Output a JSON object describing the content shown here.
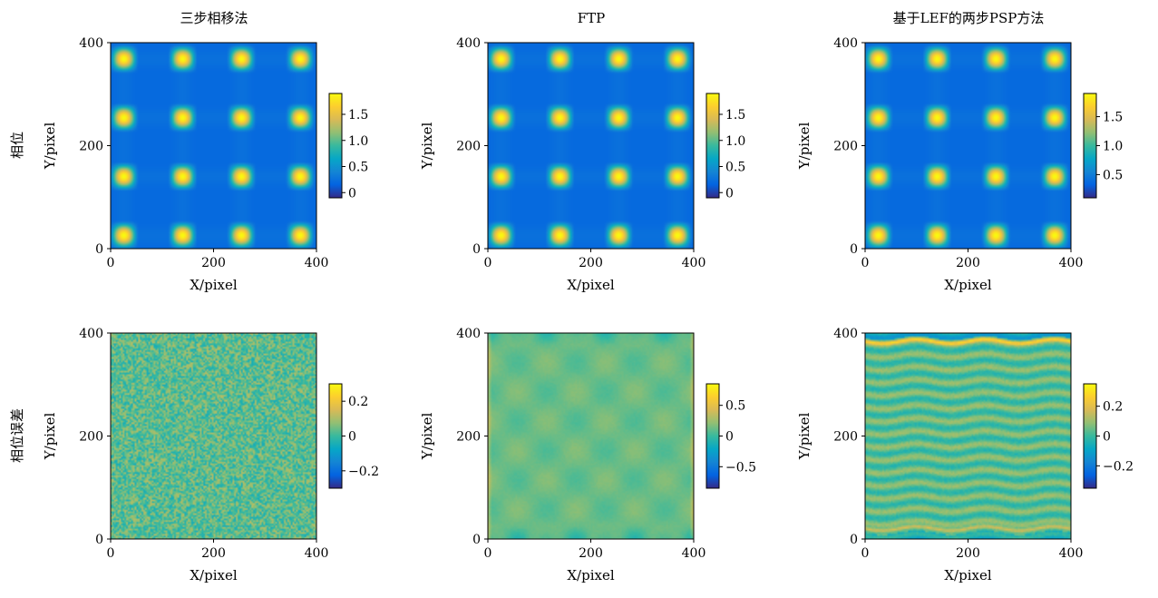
{
  "figure": {
    "columns": [
      "三步相移法",
      "FTP",
      "基于LEF的两步PSP方法"
    ],
    "rows": [
      "相位",
      "相位误差"
    ]
  },
  "chart_data": [
    {
      "type": "heatmap",
      "title": "三步相移法",
      "row_label": "相位",
      "xlabel": "X/pixel",
      "ylabel": "Y/pixel",
      "xlim": [
        0,
        400
      ],
      "ylim": [
        0,
        400
      ],
      "xticks": [
        "0",
        "200",
        "400"
      ],
      "yticks": [
        "0",
        "200",
        "400"
      ],
      "pattern": "spots",
      "cells": 7,
      "colorbar": {
        "min": -0.1,
        "max": 1.9,
        "ticks": [
          0,
          0.5,
          1.0,
          1.5
        ],
        "tick_labels": [
          "0",
          "0.5",
          "1.0",
          "1.5"
        ]
      }
    },
    {
      "type": "heatmap",
      "title": "FTP",
      "row_label": "相位",
      "xlabel": "X/pixel",
      "ylabel": "Y/pixel",
      "xlim": [
        0,
        400
      ],
      "ylim": [
        0,
        400
      ],
      "xticks": [
        "0",
        "200",
        "400"
      ],
      "yticks": [
        "0",
        "200",
        "400"
      ],
      "pattern": "spots",
      "cells": 7,
      "colorbar": {
        "min": -0.1,
        "max": 1.9,
        "ticks": [
          0,
          0.5,
          1.0,
          1.5
        ],
        "tick_labels": [
          "0",
          "0.5",
          "1.0",
          "1.5"
        ]
      }
    },
    {
      "type": "heatmap",
      "title": "基于LEF的两步PSP方法",
      "row_label": "相位",
      "xlabel": "X/pixel",
      "ylabel": "Y/pixel",
      "xlim": [
        0,
        400
      ],
      "ylim": [
        0,
        400
      ],
      "xticks": [
        "0",
        "200",
        "400"
      ],
      "yticks": [
        "0",
        "200",
        "400"
      ],
      "pattern": "spots",
      "cells": 7,
      "colorbar": {
        "min": 0.1,
        "max": 1.9,
        "ticks": [
          0.5,
          1.0,
          1.5
        ],
        "tick_labels": [
          "0.5",
          "1.0",
          "1.5"
        ]
      }
    },
    {
      "type": "heatmap",
      "title": "",
      "row_label": "相位误差",
      "xlabel": "X/pixel",
      "ylabel": "Y/pixel",
      "xlim": [
        0,
        400
      ],
      "ylim": [
        0,
        400
      ],
      "xticks": [
        "0",
        "200",
        "400"
      ],
      "yticks": [
        "0",
        "200",
        "400"
      ],
      "pattern": "noise",
      "colorbar": {
        "min": -0.3,
        "max": 0.3,
        "ticks": [
          -0.2,
          0,
          0.2
        ],
        "tick_labels": [
          "−0.2",
          "0",
          "0.2"
        ]
      }
    },
    {
      "type": "heatmap",
      "title": "",
      "row_label": "相位误差",
      "xlabel": "X/pixel",
      "ylabel": "Y/pixel",
      "xlim": [
        0,
        400
      ],
      "ylim": [
        0,
        400
      ],
      "xticks": [
        "0",
        "200",
        "400"
      ],
      "yticks": [
        "0",
        "200",
        "400"
      ],
      "pattern": "ftp_error",
      "colorbar": {
        "min": -0.85,
        "max": 0.85,
        "ticks": [
          -0.5,
          0,
          0.5
        ],
        "tick_labels": [
          "−0.5",
          "0",
          "0.5"
        ]
      }
    },
    {
      "type": "heatmap",
      "title": "",
      "row_label": "相位误差",
      "xlabel": "X/pixel",
      "ylabel": "Y/pixel",
      "xlim": [
        0,
        400
      ],
      "ylim": [
        0,
        400
      ],
      "xticks": [
        "0",
        "200",
        "400"
      ],
      "yticks": [
        "0",
        "200",
        "400"
      ],
      "pattern": "stripes",
      "colorbar": {
        "min": -0.35,
        "max": 0.35,
        "ticks": [
          -0.2,
          0,
          0.2
        ],
        "tick_labels": [
          "−0.2",
          "0",
          "0.2"
        ]
      }
    }
  ]
}
